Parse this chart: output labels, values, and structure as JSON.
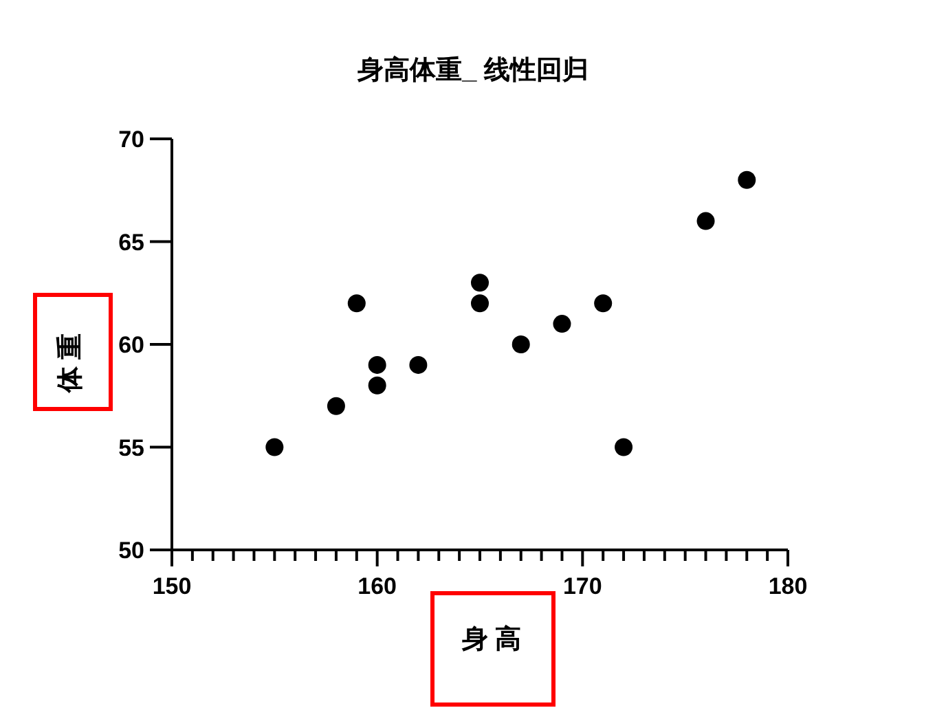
{
  "chart_data": {
    "type": "scatter",
    "title": "身高体重_ 线性回归",
    "xlabel": "身 高",
    "ylabel": "体 重",
    "x": [
      155,
      158,
      159,
      160,
      160,
      162,
      165,
      165,
      167,
      169,
      171,
      172,
      176,
      178
    ],
    "values": [
      55,
      57,
      62,
      59,
      58,
      59,
      63,
      62,
      60,
      61,
      62,
      55,
      66,
      68
    ],
    "color": "#000000",
    "marker": "circle",
    "grid": false,
    "xlim": [
      150,
      180
    ],
    "ylim": [
      50,
      70
    ],
    "xticks": [
      150,
      {
        "value": 151,
        "label": null
      },
      {
        "value": 152,
        "label": null
      },
      {
        "value": 153,
        "label": null
      },
      {
        "value": 154,
        "label": null
      },
      {
        "value": 155,
        "label": null
      },
      {
        "value": 156,
        "label": null
      },
      {
        "value": 157,
        "label": null
      },
      {
        "value": 158,
        "label": null
      },
      {
        "value": 159,
        "label": null
      },
      160,
      {
        "value": 161,
        "label": null
      },
      {
        "value": 162,
        "label": null
      },
      {
        "value": 163,
        "label": null
      },
      {
        "value": 164,
        "label": null
      },
      {
        "value": 165,
        "label": null
      },
      {
        "value": 166,
        "label": null
      },
      {
        "value": 167,
        "label": null
      },
      {
        "value": 168,
        "label": null
      },
      {
        "value": 169,
        "label": null
      },
      170,
      {
        "value": 171,
        "label": null
      },
      {
        "value": 172,
        "label": null
      },
      {
        "value": 173,
        "label": null
      },
      {
        "value": 174,
        "label": null
      },
      {
        "value": 175,
        "label": null
      },
      {
        "value": 176,
        "label": null
      },
      {
        "value": 177,
        "label": null
      },
      {
        "value": 178,
        "label": null
      },
      {
        "value": 179,
        "label": null
      },
      180
    ],
    "yticks": [
      50,
      55,
      60,
      65,
      70
    ]
  }
}
